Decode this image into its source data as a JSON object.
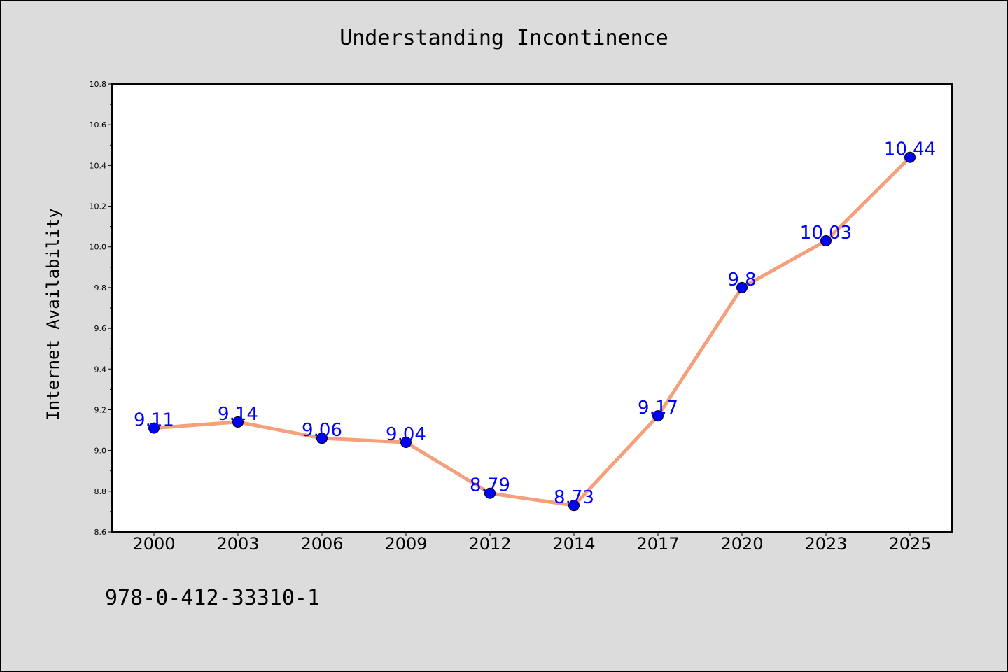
{
  "chart_data": {
    "type": "line",
    "title": "Understanding Incontinence",
    "ylabel": "Internet Availability",
    "xlabel": "",
    "categories": [
      "2000",
      "2003",
      "2006",
      "2009",
      "2012",
      "2014",
      "2017",
      "2020",
      "2023",
      "2025"
    ],
    "series": [
      {
        "values": [
          9.11,
          9.14,
          9.06,
          9.04,
          8.79,
          8.73,
          9.17,
          9.8,
          10.03,
          10.44
        ],
        "labels": [
          "9.11",
          "9.14",
          "9.06",
          "9.04",
          "8.79",
          "8.73",
          "9.17",
          "9.8",
          "10.03",
          "10.44"
        ]
      }
    ],
    "ylim": [
      8.6,
      10.8
    ],
    "yticks": [
      8.6,
      8.8,
      9.0,
      9.2,
      9.4,
      9.6,
      9.8,
      10.0,
      10.2,
      10.4,
      10.6,
      10.8
    ],
    "ytick_labels": [
      "8.6",
      "8.8",
      "9.0",
      "9.2",
      "9.4",
      "9.6",
      "9.8",
      "10.0",
      "10.2",
      "10.4",
      "10.6",
      "10.8"
    ],
    "grid": false,
    "legend": "none"
  },
  "footer": {
    "isbn": "978-0-412-33310-1"
  },
  "colors": {
    "background": "#dcdcdc",
    "plot_background": "#ffffff",
    "line": "#f4a07c",
    "marker": "#0000ff",
    "data_label": "#0000ff"
  }
}
